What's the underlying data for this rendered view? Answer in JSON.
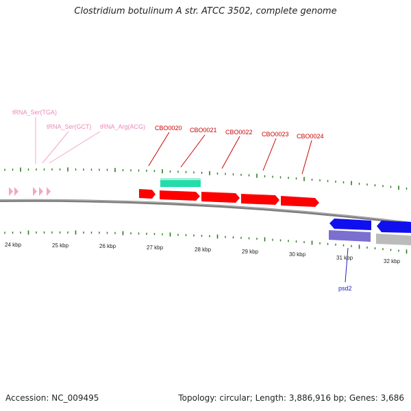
{
  "title": "Clostridium botulinum A str. ATCC 3502, complete genome",
  "footer": {
    "accession": "Accession: NC_009495",
    "summary": "Topology: circular; Length: 3,886,916 bp; Genes: 3,686"
  },
  "colors": {
    "backbone": "#808080",
    "ticks": "#2a7a1e",
    "trna": "#f4a6c8",
    "trna_label": "#e888b8",
    "cds": "#ff0000",
    "cds_label": "#cc0000",
    "gene_teal": "#22ddaa",
    "gene_blue": "#1010ee",
    "gene_lavender": "#7b6fd0",
    "gene_gray": "#bbbbbb",
    "psd_label": "#1a1acc"
  },
  "scale_labels": [
    "24 kbp",
    "25 kbp",
    "26 kbp",
    "27 kbp",
    "28 kbp",
    "29 kbp",
    "30 kbp",
    "31 kbp",
    "32 kbp"
  ],
  "trna_labels": [
    "tRNA_Ser(TGA)",
    "tRNA_Ser(GCT)",
    "tRNA_Arg(ACG)"
  ],
  "cds_labels": [
    "CBO0020",
    "CBO0021",
    "CBO0022",
    "CBO0023",
    "CBO0024"
  ],
  "gene_labels": [
    "psd2"
  ]
}
